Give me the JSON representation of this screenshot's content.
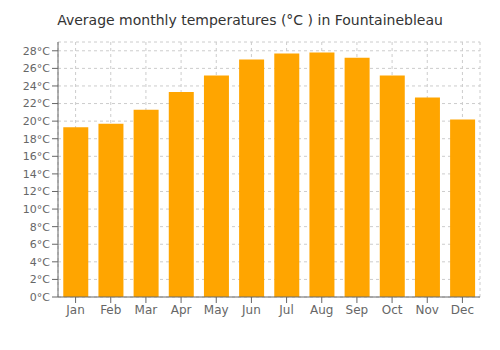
{
  "chart_data": {
    "type": "bar",
    "title": "Average monthly temperatures (°C ) in Fountainebleau",
    "categories": [
      "Jan",
      "Feb",
      "Mar",
      "Apr",
      "May",
      "Jun",
      "Jul",
      "Aug",
      "Sep",
      "Oct",
      "Nov",
      "Dec"
    ],
    "values": [
      19.3,
      19.7,
      21.3,
      23.3,
      25.2,
      27.0,
      27.7,
      27.8,
      27.2,
      25.2,
      22.7,
      20.2
    ],
    "color": "#FFA500",
    "ylim": [
      0,
      29
    ],
    "yticks": [
      {
        "value": 0,
        "label": "0°C"
      },
      {
        "value": 2,
        "label": "2°C"
      },
      {
        "value": 4,
        "label": "4°C"
      },
      {
        "value": 6,
        "label": "6°C"
      },
      {
        "value": 8,
        "label": "8°C"
      },
      {
        "value": 10,
        "label": "10°C"
      },
      {
        "value": 12,
        "label": "12°C"
      },
      {
        "value": 14,
        "label": "14°C"
      },
      {
        "value": 16,
        "label": "16°C"
      },
      {
        "value": 18,
        "label": "18°C"
      },
      {
        "value": 20,
        "label": "20°C"
      },
      {
        "value": 22,
        "label": "22°C"
      },
      {
        "value": 24,
        "label": "24°C"
      },
      {
        "value": 26,
        "label": "26°C"
      },
      {
        "value": 28,
        "label": "28°C"
      }
    ],
    "grid": true
  }
}
